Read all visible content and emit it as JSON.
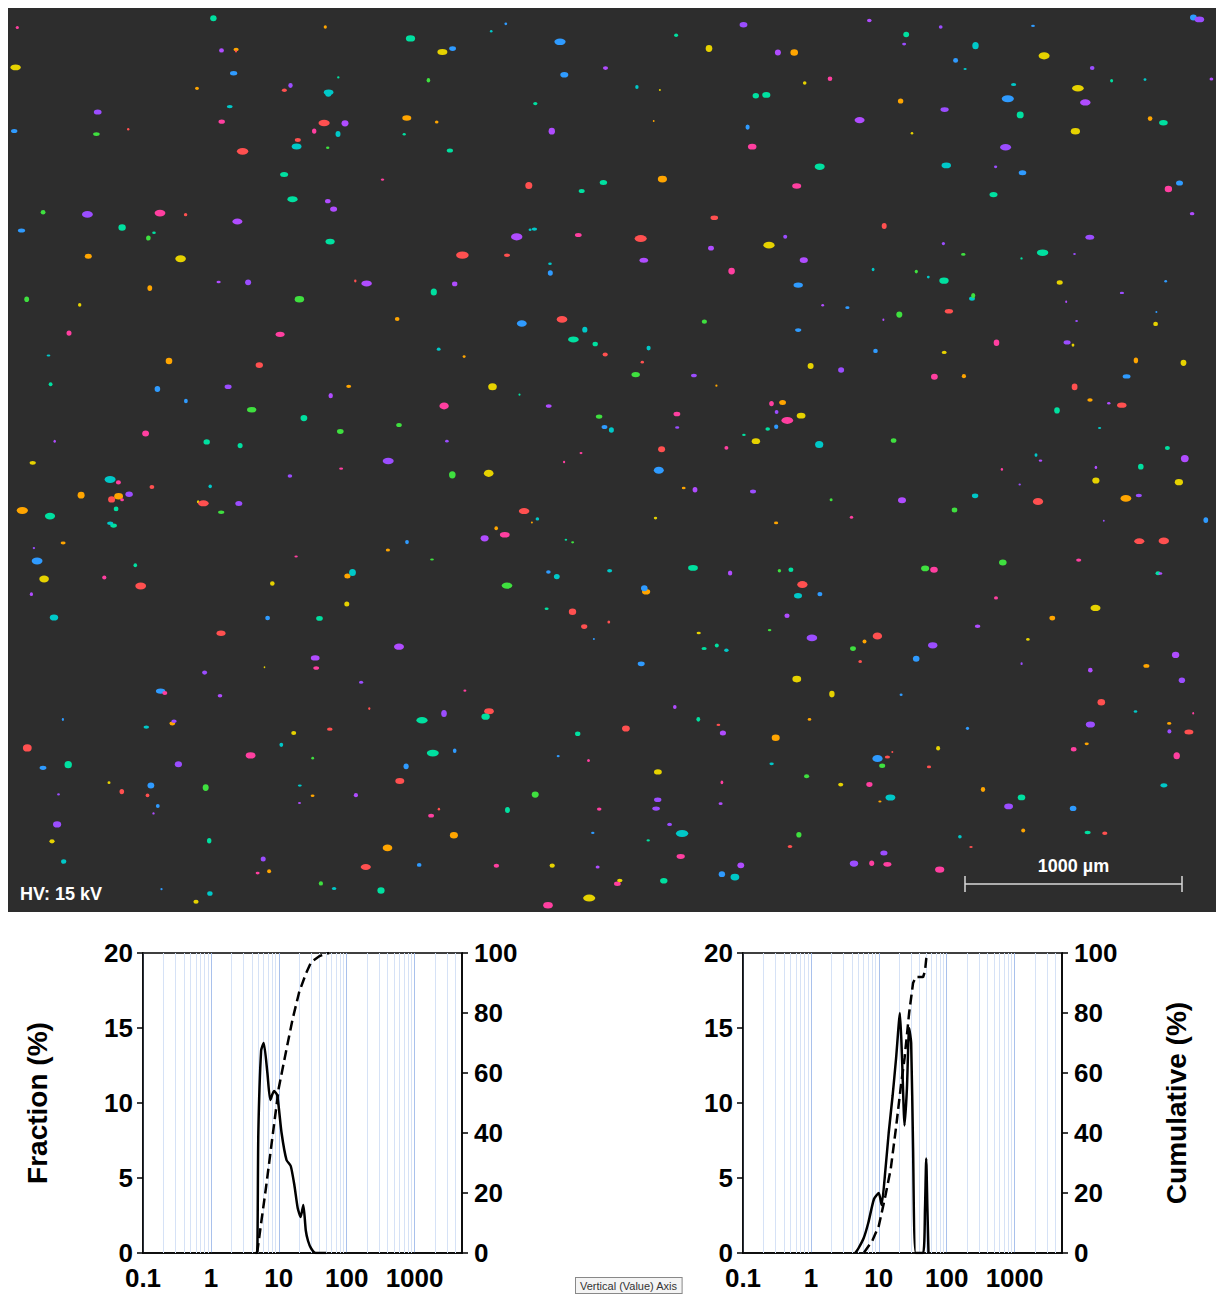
{
  "image": {
    "label": "HV: 15 kV",
    "scale_bar": "1000 µm"
  },
  "chart_data": [
    {
      "type": "line",
      "ylabel": "Fraction (%)",
      "log": "x",
      "grid": true,
      "xlim": [
        0.1,
        5000
      ],
      "xticks": [
        0.1,
        1,
        10,
        100,
        1000
      ],
      "ylim": [
        0,
        20
      ],
      "yticks": [
        0,
        5,
        10,
        15,
        20
      ],
      "y2lim": [
        0,
        100
      ],
      "y2ticks": [
        0,
        20,
        40,
        60,
        80,
        100
      ],
      "series": [
        {
          "color": "#000000",
          "line_style": "solid",
          "x": [
            4.5,
            4.8,
            5.0,
            5.5,
            6.0,
            6.8,
            7.5,
            8.5,
            9.5,
            11,
            13,
            15,
            17,
            19,
            21,
            23,
            25,
            27,
            30,
            35,
            50
          ],
          "values": [
            0,
            0,
            8,
            13.5,
            14,
            12,
            10.2,
            10.8,
            10.5,
            8,
            6.2,
            5.8,
            4.5,
            3,
            2.4,
            3.2,
            1.5,
            0.8,
            0.3,
            0,
            0
          ]
        },
        {
          "color": "#000000",
          "line_style": "dashed",
          "axis": "y2",
          "x": [
            4.8,
            5.5,
            6.5,
            8,
            10,
            13,
            16,
            20,
            25,
            30,
            40,
            55
          ],
          "values": [
            0,
            10,
            22,
            38,
            55,
            68,
            78,
            87,
            93,
            97,
            99,
            100
          ]
        }
      ]
    },
    {
      "type": "line",
      "y2label": "Cumulative (%)",
      "log": "x",
      "grid": true,
      "annotation": "Vertical (Value) Axis",
      "xlim": [
        0.1,
        5000
      ],
      "xticks": [
        0.1,
        1,
        10,
        100,
        1000
      ],
      "ylim": [
        0,
        20
      ],
      "yticks": [
        0,
        5,
        10,
        15,
        20
      ],
      "y2lim": [
        0,
        100
      ],
      "y2ticks": [
        0,
        20,
        40,
        60,
        80,
        100
      ],
      "series": [
        {
          "color": "#000000",
          "line_style": "solid",
          "x": [
            4.5,
            5,
            6,
            7,
            8.5,
            10,
            11,
            12.5,
            14,
            16,
            18,
            20.5,
            22,
            24,
            26,
            28,
            30,
            32,
            35,
            45,
            48,
            50,
            52,
            54
          ],
          "values": [
            0,
            0.3,
            1,
            2,
            3.6,
            4,
            3.2,
            5.5,
            8,
            10.5,
            13,
            16,
            13,
            8.5,
            11,
            15,
            14,
            7,
            0,
            0,
            3,
            6.3,
            3,
            0
          ]
        },
        {
          "color": "#000000",
          "line_style": "dashed",
          "axis": "y2",
          "x": [
            6,
            8,
            10,
            12.5,
            15,
            18,
            21,
            24,
            28,
            32,
            35,
            45,
            48,
            50,
            54
          ],
          "values": [
            0,
            4,
            9,
            19,
            28,
            42,
            55,
            65,
            80,
            90,
            92,
            92,
            94,
            98,
            100
          ]
        }
      ]
    }
  ]
}
